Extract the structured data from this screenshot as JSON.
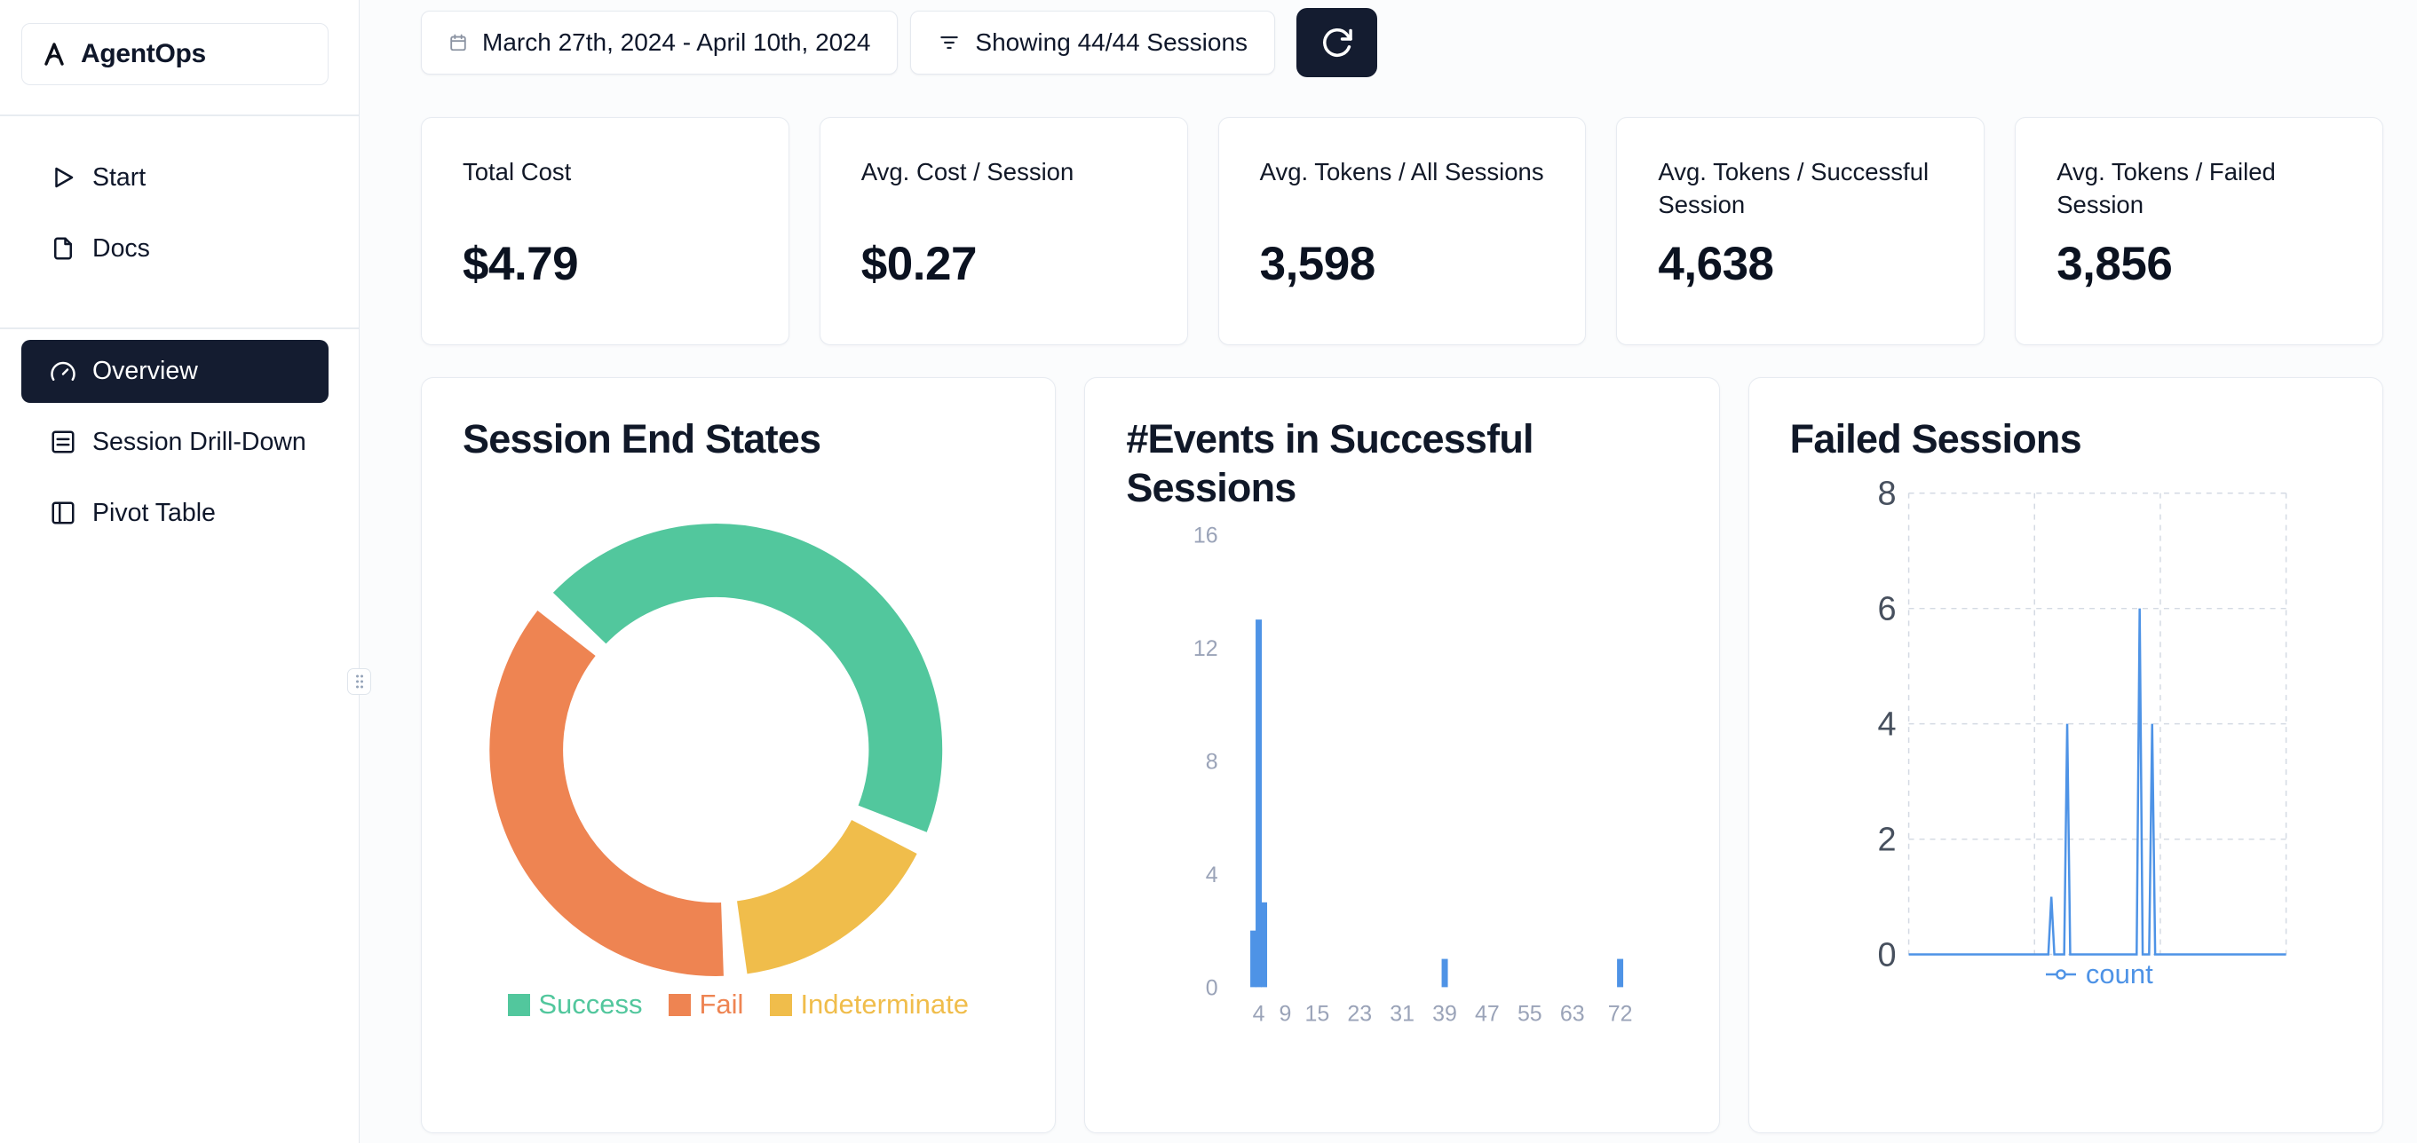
{
  "app": {
    "name": "AgentOps"
  },
  "sidebar": {
    "items": [
      {
        "label": "Start"
      },
      {
        "label": "Docs"
      },
      {
        "label": "Overview",
        "active": true
      },
      {
        "label": "Session Drill-Down"
      },
      {
        "label": "Pivot Table"
      }
    ]
  },
  "topbar": {
    "date_range": "March 27th, 2024 - April 10th, 2024",
    "sessions_filter": "Showing 44/44 Sessions"
  },
  "stats": [
    {
      "label": "Total Cost",
      "value": "$4.79"
    },
    {
      "label": "Avg. Cost / Session",
      "value": "$0.27"
    },
    {
      "label": "Avg. Tokens / All Sessions",
      "value": "3,598"
    },
    {
      "label": "Avg. Tokens / Successful Session",
      "value": "4,638"
    },
    {
      "label": "Avg. Tokens / Failed Session",
      "value": "3,856"
    }
  ],
  "chart_data": [
    {
      "type": "pie",
      "title": "Session End States",
      "donut": true,
      "unit": "percent",
      "legend_position": "bottom",
      "legend_order": [
        "Success",
        "Fail",
        "Indeterminate"
      ],
      "segments": [
        {
          "label": "Success",
          "value": 46,
          "color": "#52c79d"
        },
        {
          "label": "Indeterminate",
          "value": 16,
          "color": "#f0bd4b"
        },
        {
          "label": "Fail",
          "value": 38,
          "color": "#ee8452"
        }
      ]
    },
    {
      "type": "bar",
      "title": "#Events in Successful Sessions",
      "xlabel": "",
      "ylabel": "",
      "xlim": [
        0,
        76
      ],
      "ylim": [
        0,
        16
      ],
      "xticks": [
        4,
        9,
        15,
        23,
        31,
        39,
        47,
        55,
        63,
        72
      ],
      "yticks": [
        0,
        4,
        8,
        12,
        16
      ],
      "bar_color": "#4e93e6",
      "bars": [
        {
          "x": 3,
          "count": 2
        },
        {
          "x": 4,
          "count": 13
        },
        {
          "x": 5,
          "count": 3
        },
        {
          "x": 39,
          "count": 1
        },
        {
          "x": 72,
          "count": 1
        }
      ]
    },
    {
      "type": "line",
      "title": "Failed Sessions",
      "xlim": [
        0,
        100
      ],
      "ylim": [
        0,
        8
      ],
      "yticks": [
        0,
        2,
        4,
        6,
        8
      ],
      "grid": "dashed",
      "legend_position": "bottom",
      "series": [
        {
          "name": "count",
          "color": "#4e93e6",
          "points": [
            [
              0,
              0
            ],
            [
              37,
              0
            ],
            [
              37.8,
              1
            ],
            [
              38.6,
              0
            ],
            [
              41.2,
              0
            ],
            [
              42,
              4
            ],
            [
              42.8,
              0
            ],
            [
              60.4,
              0
            ],
            [
              61.2,
              6
            ],
            [
              62,
              0
            ],
            [
              63.7,
              0
            ],
            [
              64.5,
              4
            ],
            [
              65.3,
              0
            ],
            [
              100,
              0
            ]
          ]
        }
      ]
    }
  ]
}
